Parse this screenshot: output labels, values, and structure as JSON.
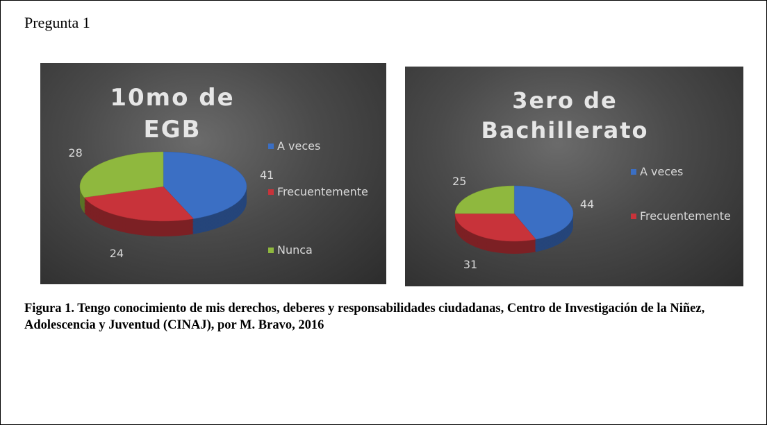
{
  "heading": "Pregunta 1",
  "chart_data": [
    {
      "type": "pie",
      "title": "10mo de EGB",
      "categories": [
        "A veces",
        "Frecuentemente",
        "Nunca"
      ],
      "values": [
        41,
        24,
        28
      ],
      "colors": [
        "#3b6fc4",
        "#c8333a",
        "#8fb83e"
      ],
      "legend": "right"
    },
    {
      "type": "pie",
      "title": "3ero de Bachillerato",
      "categories": [
        "A veces",
        "Frecuentemente",
        null
      ],
      "values": [
        44,
        31,
        25
      ],
      "colors": [
        "#3b6fc4",
        "#c8333a",
        "#8fb83e"
      ],
      "legend": "right"
    }
  ],
  "caption": "Figura 1. Tengo conocimiento de mis derechos, deberes y responsabilidades ciudadanas, Centro de Investigación de la Niñez, Adolescencia y Juventud (CINAJ), por M. Bravo, 2016"
}
